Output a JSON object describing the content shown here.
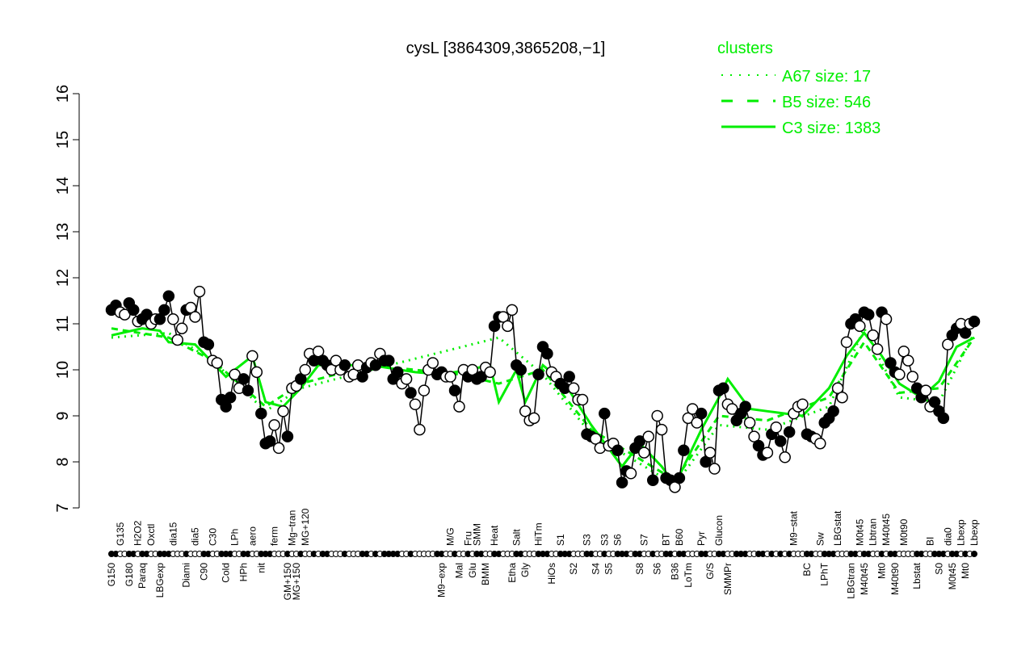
{
  "chart_data": {
    "type": "line",
    "title": "cysL [3864309,3865208,−1]",
    "xlabel": "",
    "ylabel": "",
    "ylim": [
      7,
      16
    ],
    "yticks": [
      "7",
      "8",
      "9",
      "10",
      "11",
      "12",
      "13",
      "14",
      "15",
      "16"
    ],
    "grid": false,
    "legend": {
      "title": "clusters",
      "placement": "top-right",
      "color": "#00ee00",
      "entries": [
        {
          "label": "A67 size: 17",
          "style": "dotted"
        },
        {
          "label": "B5 size: 546",
          "style": "dashed"
        },
        {
          "label": "C3 size: 1383",
          "style": "solid"
        }
      ]
    },
    "colors": {
      "profile": "#000000",
      "clusters": "#00ee00"
    },
    "profile": [
      {
        "y": 11.3,
        "f": 1,
        "label": "G150"
      },
      {
        "y": 11.4,
        "f": 1
      },
      {
        "y": 11.25,
        "f": 0,
        "label": "G135"
      },
      {
        "y": 11.2,
        "f": 0
      },
      {
        "y": 11.45,
        "f": 1,
        "label": "G180"
      },
      {
        "y": 11.3,
        "f": 1
      },
      {
        "y": 11.05,
        "f": 0,
        "label": "H2O2"
      },
      {
        "y": 11.1,
        "f": 1,
        "label": "Paraq"
      },
      {
        "y": 11.2,
        "f": 1
      },
      {
        "y": 11.0,
        "f": 0,
        "label": "Oxctl"
      },
      {
        "y": 11.1,
        "f": 0
      },
      {
        "y": 11.1,
        "f": 1,
        "label": "LBGexp"
      },
      {
        "y": 11.3,
        "f": 1
      },
      {
        "y": 11.6,
        "f": 1
      },
      {
        "y": 11.1,
        "f": 0,
        "label": "dia15"
      },
      {
        "y": 10.65,
        "f": 0
      },
      {
        "y": 10.9,
        "f": 0
      },
      {
        "y": 11.3,
        "f": 1,
        "label": "Diami"
      },
      {
        "y": 11.35,
        "f": 0
      },
      {
        "y": 11.15,
        "f": 0,
        "label": "dia5"
      },
      {
        "y": 11.7,
        "f": 0
      },
      {
        "y": 10.6,
        "f": 1,
        "label": "C90"
      },
      {
        "y": 10.55,
        "f": 1
      },
      {
        "y": 10.2,
        "f": 0,
        "label": "C30"
      },
      {
        "y": 10.15,
        "f": 0
      },
      {
        "y": 9.35,
        "f": 1
      },
      {
        "y": 9.2,
        "f": 1,
        "label": "Cold"
      },
      {
        "y": 9.4,
        "f": 1
      },
      {
        "y": 9.9,
        "f": 0,
        "label": "LPh"
      },
      {
        "y": 9.6,
        "f": 0
      },
      {
        "y": 9.8,
        "f": 1,
        "label": "HPh"
      },
      {
        "y": 9.55,
        "f": 1
      },
      {
        "y": 10.3,
        "f": 0,
        "label": "aero"
      },
      {
        "y": 9.95,
        "f": 0
      },
      {
        "y": 9.05,
        "f": 1,
        "label": "nit"
      },
      {
        "y": 8.4,
        "f": 1
      },
      {
        "y": 8.45,
        "f": 1
      },
      {
        "y": 8.8,
        "f": 0,
        "label": "ferm"
      },
      {
        "y": 8.3,
        "f": 0
      },
      {
        "y": 9.1,
        "f": 0
      },
      {
        "y": 8.55,
        "f": 1,
        "label": "GM+150"
      },
      {
        "y": 9.6,
        "f": 0,
        "label": "Mg−tran"
      },
      {
        "y": 9.65,
        "f": 0,
        "label": "MG+150"
      },
      {
        "y": 9.8,
        "f": 1
      },
      {
        "y": 10.0,
        "f": 0,
        "label": "MG+120"
      },
      {
        "y": 10.35,
        "f": 0
      },
      {
        "y": 10.2,
        "f": 1
      },
      {
        "y": 10.4,
        "f": 0
      },
      {
        "y": 10.2,
        "f": 1
      },
      {
        "y": 10.1,
        "f": 1
      },
      {
        "y": 10.0,
        "f": 0
      },
      {
        "y": 10.2,
        "f": 0
      },
      {
        "y": 10.0,
        "f": 0
      },
      {
        "y": 10.1,
        "f": 1
      },
      {
        "y": 9.85,
        "f": 0
      },
      {
        "y": 9.9,
        "f": 0
      },
      {
        "y": 10.1,
        "f": 0
      },
      {
        "y": 9.85,
        "f": 1
      },
      {
        "y": 10.05,
        "f": 1
      },
      {
        "y": 10.15,
        "f": 0
      },
      {
        "y": 10.1,
        "f": 1
      },
      {
        "y": 10.35,
        "f": 0
      },
      {
        "y": 10.2,
        "f": 1
      },
      {
        "y": 10.2,
        "f": 1
      },
      {
        "y": 9.8,
        "f": 1
      },
      {
        "y": 9.95,
        "f": 1
      },
      {
        "y": 9.7,
        "f": 0
      },
      {
        "y": 9.8,
        "f": 0
      },
      {
        "y": 9.5,
        "f": 1
      },
      {
        "y": 9.25,
        "f": 0
      },
      {
        "y": 8.7,
        "f": 0
      },
      {
        "y": 9.55,
        "f": 0
      },
      {
        "y": 10.0,
        "f": 0
      },
      {
        "y": 10.15,
        "f": 0
      },
      {
        "y": 9.9,
        "f": 1
      },
      {
        "y": 9.95,
        "f": 1,
        "label": "M9−exp"
      },
      {
        "y": 9.85,
        "f": 0
      },
      {
        "y": 9.85,
        "f": 0,
        "label": "M/G"
      },
      {
        "y": 9.55,
        "f": 1
      },
      {
        "y": 9.2,
        "f": 0,
        "label": "Mal"
      },
      {
        "y": 10.0,
        "f": 0
      },
      {
        "y": 9.85,
        "f": 1,
        "label": "Fru"
      },
      {
        "y": 10.0,
        "f": 0,
        "label": "Glu"
      },
      {
        "y": 9.8,
        "f": 1,
        "label": "SMM"
      },
      {
        "y": 9.85,
        "f": 1
      },
      {
        "y": 10.05,
        "f": 0,
        "label": "BMM"
      },
      {
        "y": 9.95,
        "f": 0
      },
      {
        "y": 10.95,
        "f": 1,
        "label": "Heat"
      },
      {
        "y": 11.15,
        "f": 1
      },
      {
        "y": 11.15,
        "f": 0
      },
      {
        "y": 10.95,
        "f": 0
      },
      {
        "y": 11.3,
        "f": 0,
        "label": "Etha"
      },
      {
        "y": 10.1,
        "f": 1,
        "label": "Salt"
      },
      {
        "y": 10.0,
        "f": 1
      },
      {
        "y": 9.1,
        "f": 0,
        "label": "Gly"
      },
      {
        "y": 8.9,
        "f": 0
      },
      {
        "y": 8.95,
        "f": 0
      },
      {
        "y": 9.9,
        "f": 1,
        "label": "HiTm"
      },
      {
        "y": 10.5,
        "f": 1
      },
      {
        "y": 10.35,
        "f": 1
      },
      {
        "y": 9.95,
        "f": 0,
        "label": "HiOs"
      },
      {
        "y": 9.85,
        "f": 0
      },
      {
        "y": 9.7,
        "f": 1,
        "label": "S1"
      },
      {
        "y": 9.6,
        "f": 1
      },
      {
        "y": 9.85,
        "f": 1
      },
      {
        "y": 9.6,
        "f": 0,
        "label": "S2"
      },
      {
        "y": 9.35,
        "f": 0
      },
      {
        "y": 9.35,
        "f": 0
      },
      {
        "y": 8.6,
        "f": 1,
        "label": "S3"
      },
      {
        "y": 8.55,
        "f": 1
      },
      {
        "y": 8.5,
        "f": 0,
        "label": "S4"
      },
      {
        "y": 8.3,
        "f": 0
      },
      {
        "y": 9.05,
        "f": 1,
        "label": "S3"
      },
      {
        "y": 8.35,
        "f": 0,
        "label": "S5"
      },
      {
        "y": 8.4,
        "f": 0
      },
      {
        "y": 8.25,
        "f": 1,
        "label": "S6"
      },
      {
        "y": 7.55,
        "f": 1
      },
      {
        "y": 7.8,
        "f": 1
      },
      {
        "y": 7.75,
        "f": 0
      },
      {
        "y": 8.3,
        "f": 1
      },
      {
        "y": 8.45,
        "f": 1,
        "label": "S8"
      },
      {
        "y": 8.2,
        "f": 0,
        "label": "S7"
      },
      {
        "y": 8.55,
        "f": 0
      },
      {
        "y": 7.6,
        "f": 1
      },
      {
        "y": 9.0,
        "f": 0,
        "label": "S6"
      },
      {
        "y": 8.7,
        "f": 0
      },
      {
        "y": 7.65,
        "f": 1,
        "label": "BT"
      },
      {
        "y": 7.6,
        "f": 1
      },
      {
        "y": 7.45,
        "f": 0,
        "label": "B36"
      },
      {
        "y": 7.65,
        "f": 1,
        "label": "B60"
      },
      {
        "y": 8.25,
        "f": 1
      },
      {
        "y": 8.95,
        "f": 0,
        "label": "LoTm"
      },
      {
        "y": 9.15,
        "f": 0
      },
      {
        "y": 8.85,
        "f": 0
      },
      {
        "y": 9.05,
        "f": 1,
        "label": "Pyr"
      },
      {
        "y": 8.0,
        "f": 1
      },
      {
        "y": 8.2,
        "f": 0,
        "label": "G/S"
      },
      {
        "y": 7.85,
        "f": 0
      },
      {
        "y": 9.55,
        "f": 1,
        "label": "Glucon"
      },
      {
        "y": 9.6,
        "f": 1
      },
      {
        "y": 9.25,
        "f": 0,
        "label": "SMMPr"
      },
      {
        "y": 9.15,
        "f": 0
      },
      {
        "y": 8.9,
        "f": 1
      },
      {
        "y": 9.05,
        "f": 1
      },
      {
        "y": 9.2,
        "f": 1
      },
      {
        "y": 8.85,
        "f": 0
      },
      {
        "y": 8.55,
        "f": 0
      },
      {
        "y": 8.35,
        "f": 1
      },
      {
        "y": 8.15,
        "f": 1
      },
      {
        "y": 8.2,
        "f": 0
      },
      {
        "y": 8.6,
        "f": 1
      },
      {
        "y": 8.75,
        "f": 0
      },
      {
        "y": 8.45,
        "f": 1
      },
      {
        "y": 8.1,
        "f": 0
      },
      {
        "y": 8.65,
        "f": 1
      },
      {
        "y": 9.05,
        "f": 0,
        "label": "M9−stat"
      },
      {
        "y": 9.2,
        "f": 0
      },
      {
        "y": 9.25,
        "f": 0
      },
      {
        "y": 8.6,
        "f": 1,
        "label": "BC"
      },
      {
        "y": 8.55,
        "f": 1
      },
      {
        "y": 8.5,
        "f": 0
      },
      {
        "y": 8.4,
        "f": 0,
        "label": "Sw"
      },
      {
        "y": 8.85,
        "f": 1,
        "label": "LPhT"
      },
      {
        "y": 8.95,
        "f": 1
      },
      {
        "y": 9.1,
        "f": 1
      },
      {
        "y": 9.6,
        "f": 0,
        "label": "LBGstat"
      },
      {
        "y": 9.4,
        "f": 0
      },
      {
        "y": 10.6,
        "f": 0
      },
      {
        "y": 11.0,
        "f": 1,
        "label": "LBGtran"
      },
      {
        "y": 11.1,
        "f": 1
      },
      {
        "y": 10.95,
        "f": 0,
        "label": "M0t45"
      },
      {
        "y": 11.25,
        "f": 1,
        "label": "M40t45"
      },
      {
        "y": 11.2,
        "f": 1
      },
      {
        "y": 10.75,
        "f": 0,
        "label": "Lbtran"
      },
      {
        "y": 10.45,
        "f": 0
      },
      {
        "y": 11.25,
        "f": 1,
        "label": "Mt0"
      },
      {
        "y": 11.1,
        "f": 0,
        "label": "M40t45"
      },
      {
        "y": 10.15,
        "f": 1
      },
      {
        "y": 9.95,
        "f": 1,
        "label": "M40t90"
      },
      {
        "y": 9.9,
        "f": 0
      },
      {
        "y": 10.4,
        "f": 0,
        "label": "M0t90"
      },
      {
        "y": 10.2,
        "f": 0
      },
      {
        "y": 9.85,
        "f": 0
      },
      {
        "y": 9.6,
        "f": 1,
        "label": "Lbstat"
      },
      {
        "y": 9.4,
        "f": 1
      },
      {
        "y": 9.55,
        "f": 0
      },
      {
        "y": 9.2,
        "f": 0,
        "label": "BI"
      },
      {
        "y": 9.3,
        "f": 1
      },
      {
        "y": 9.1,
        "f": 1,
        "label": "S0"
      },
      {
        "y": 8.95,
        "f": 1
      },
      {
        "y": 10.55,
        "f": 0,
        "label": "dia0"
      },
      {
        "y": 10.75,
        "f": 1,
        "label": "M0t45"
      },
      {
        "y": 10.9,
        "f": 1
      },
      {
        "y": 11.0,
        "f": 0,
        "label": "Lbexp"
      },
      {
        "y": 10.8,
        "f": 1,
        "label": "Mt0"
      },
      {
        "y": 11.0,
        "f": 0
      },
      {
        "y": 11.05,
        "f": 1,
        "label": "Lbexp"
      }
    ],
    "clusters": {
      "C3": [
        [
          1,
          10.75
        ],
        [
          8,
          10.9
        ],
        [
          12,
          10.85
        ],
        [
          14,
          10.6
        ],
        [
          20,
          10.55
        ],
        [
          24,
          10.15
        ],
        [
          27,
          9.85
        ],
        [
          33,
          10.3
        ],
        [
          36,
          9.3
        ],
        [
          40,
          9.2
        ],
        [
          44,
          9.6
        ],
        [
          48,
          10.1
        ],
        [
          60,
          10.1
        ],
        [
          70,
          9.95
        ],
        [
          76,
          9.9
        ],
        [
          82,
          10.0
        ],
        [
          87,
          10.1
        ],
        [
          89,
          9.3
        ],
        [
          93,
          10.0
        ],
        [
          95,
          9.3
        ],
        [
          99,
          10.1
        ],
        [
          104,
          9.7
        ],
        [
          110,
          8.8
        ],
        [
          117,
          7.9
        ],
        [
          121,
          8.4
        ],
        [
          126,
          7.9
        ],
        [
          129,
          7.5
        ],
        [
          135,
          8.7
        ],
        [
          139,
          9.4
        ],
        [
          141,
          9.8
        ],
        [
          146,
          9.15
        ],
        [
          150,
          9.1
        ],
        [
          158,
          9.0
        ],
        [
          164,
          9.6
        ],
        [
          168,
          10.3
        ],
        [
          172,
          10.8
        ],
        [
          176,
          10.3
        ],
        [
          180,
          9.7
        ],
        [
          185,
          9.4
        ],
        [
          189,
          9.75
        ],
        [
          193,
          10.5
        ],
        [
          197,
          10.7
        ]
      ],
      "B5": [
        [
          1,
          10.9
        ],
        [
          14,
          10.7
        ],
        [
          24,
          10.2
        ],
        [
          36,
          9.2
        ],
        [
          44,
          9.7
        ],
        [
          60,
          10.1
        ],
        [
          80,
          9.9
        ],
        [
          89,
          9.7
        ],
        [
          99,
          10.0
        ],
        [
          110,
          8.7
        ],
        [
          129,
          7.6
        ],
        [
          139,
          9.0
        ],
        [
          150,
          8.9
        ],
        [
          164,
          9.4
        ],
        [
          172,
          10.6
        ],
        [
          180,
          9.5
        ],
        [
          189,
          9.6
        ],
        [
          197,
          10.7
        ]
      ],
      "A67": [
        [
          1,
          10.7
        ],
        [
          14,
          10.8
        ],
        [
          24,
          10.2
        ],
        [
          36,
          9.1
        ],
        [
          44,
          9.6
        ],
        [
          60,
          10.0
        ],
        [
          89,
          10.7
        ],
        [
          99,
          9.9
        ],
        [
          110,
          8.6
        ],
        [
          129,
          7.5
        ],
        [
          139,
          8.8
        ],
        [
          150,
          8.7
        ],
        [
          164,
          9.2
        ],
        [
          172,
          10.9
        ],
        [
          180,
          9.4
        ],
        [
          189,
          9.3
        ],
        [
          197,
          10.8
        ]
      ]
    }
  }
}
